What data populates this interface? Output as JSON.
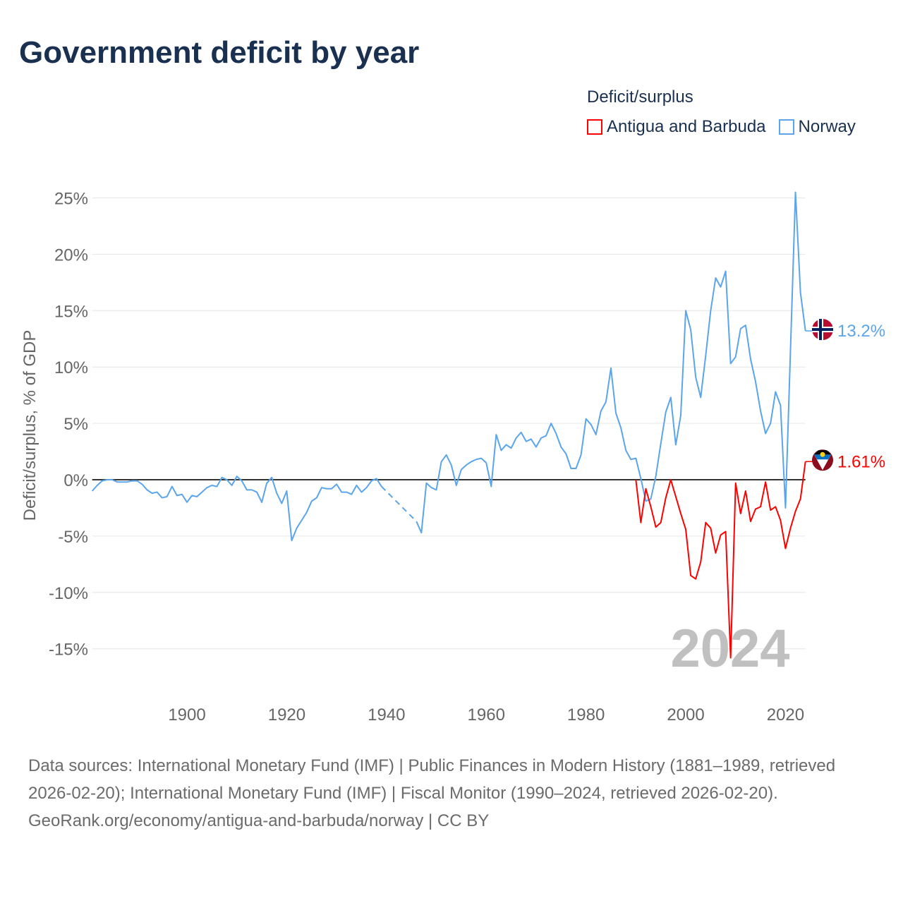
{
  "title": "Government deficit by year",
  "legend": {
    "title": "Deficit/surplus"
  },
  "colors": {
    "antigua": "#ff0000",
    "norway": "#5aa5ec",
    "zero_line": "#333333",
    "grid": "#e6e6e6",
    "axis_text": "#666666",
    "year_watermark": "#c0c0c0"
  },
  "chart_data": {
    "type": "line",
    "title": "Government deficit by year",
    "ylabel": "Deficit/surplus, % of GDP",
    "xlabel": "",
    "xlim": [
      1881,
      2024
    ],
    "ylim": [
      -17.5,
      27
    ],
    "grid": true,
    "legend_position": "top-right",
    "x_ticks": [
      1900,
      1920,
      1940,
      1960,
      1980,
      2000,
      2020
    ],
    "y_ticks": [
      25,
      20,
      15,
      10,
      5,
      0,
      -5,
      -10,
      -15
    ],
    "y_tick_labels": [
      "25%",
      "20%",
      "15%",
      "10%",
      "5%",
      "0%",
      "-5%",
      "-10%",
      "-15%"
    ],
    "year_label": "2024",
    "series": [
      {
        "name": "Antigua and Barbuda",
        "key": "antigua",
        "start_year": 1990,
        "end_label": "1.61%",
        "flag": "antigua-and-barbuda-flag",
        "values": [
          0.0,
          -3.8,
          -0.8,
          -2.4,
          -4.2,
          -3.8,
          -1.6,
          0.0,
          -1.5,
          -3.0,
          -4.4,
          -8.5,
          -8.8,
          -7.3,
          -3.8,
          -4.3,
          -6.5,
          -4.9,
          -4.6,
          -15.8,
          -0.3,
          -3.0,
          -1.0,
          -3.7,
          -2.6,
          -2.4,
          -0.2,
          -2.7,
          -2.4,
          -3.6,
          -6.1,
          -4.3,
          -2.8,
          -1.7,
          1.61
        ]
      },
      {
        "name": "Norway",
        "key": "norway",
        "start_year": 1881,
        "end_label": "13.2%",
        "flag": "norway-flag",
        "values": [
          -1.0,
          -0.5,
          -0.1,
          0.0,
          0.0,
          -0.2,
          -0.2,
          -0.2,
          -0.1,
          -0.1,
          -0.4,
          -0.9,
          -1.2,
          -1.1,
          -1.6,
          -1.5,
          -0.6,
          -1.4,
          -1.3,
          -2.0,
          -1.4,
          -1.5,
          -1.1,
          -0.7,
          -0.5,
          -0.6,
          0.2,
          0.0,
          -0.5,
          0.3,
          -0.1,
          -0.9,
          -0.9,
          -1.1,
          -2.0,
          -0.3,
          0.2,
          -1.2,
          -2.1,
          -1.0,
          -5.4,
          -4.3,
          -3.6,
          -2.9,
          -1.9,
          -1.6,
          -0.7,
          -0.8,
          -0.8,
          -0.4,
          -1.1,
          -1.1,
          -1.3,
          -0.5,
          -1.1,
          -0.7,
          -0.1,
          0.1,
          -0.6,
          null,
          null,
          null,
          null,
          null,
          null,
          -3.7,
          -4.7,
          -0.3,
          -0.7,
          -0.9,
          1.6,
          2.2,
          1.3,
          -0.5,
          0.9,
          1.3,
          1.6,
          1.8,
          1.9,
          1.5,
          -0.6,
          4.0,
          2.6,
          3.1,
          2.8,
          3.7,
          4.2,
          3.4,
          3.6,
          2.9,
          3.7,
          3.9,
          5.0,
          4.1,
          2.9,
          2.3,
          1.0,
          1.0,
          2.2,
          5.4,
          4.9,
          4.0,
          6.1,
          6.9,
          9.9,
          5.9,
          4.6,
          2.6,
          1.8,
          1.9,
          0.1,
          -1.9,
          -1.7,
          0.3,
          3.2,
          6.0,
          7.3,
          3.1,
          5.7,
          15.0,
          13.3,
          9.1,
          7.3,
          11.0,
          15.0,
          17.9,
          17.1,
          18.5,
          10.3,
          10.9,
          13.4,
          13.7,
          10.7,
          8.7,
          6.1,
          4.1,
          5.0,
          7.8,
          6.6,
          -2.5,
          11.5,
          25.5,
          16.6,
          13.2
        ]
      }
    ]
  },
  "footer": {
    "sources": "Data sources: International Monetary Fund (IMF) | Public Finances in Modern History (1881–1989, retrieved 2026-02-20); International Monetary Fund (IMF) | Fiscal Monitor (1990–2024, retrieved 2026-02-20).",
    "link": "GeoRank.org/economy/antigua-and-barbuda/norway | CC BY"
  }
}
